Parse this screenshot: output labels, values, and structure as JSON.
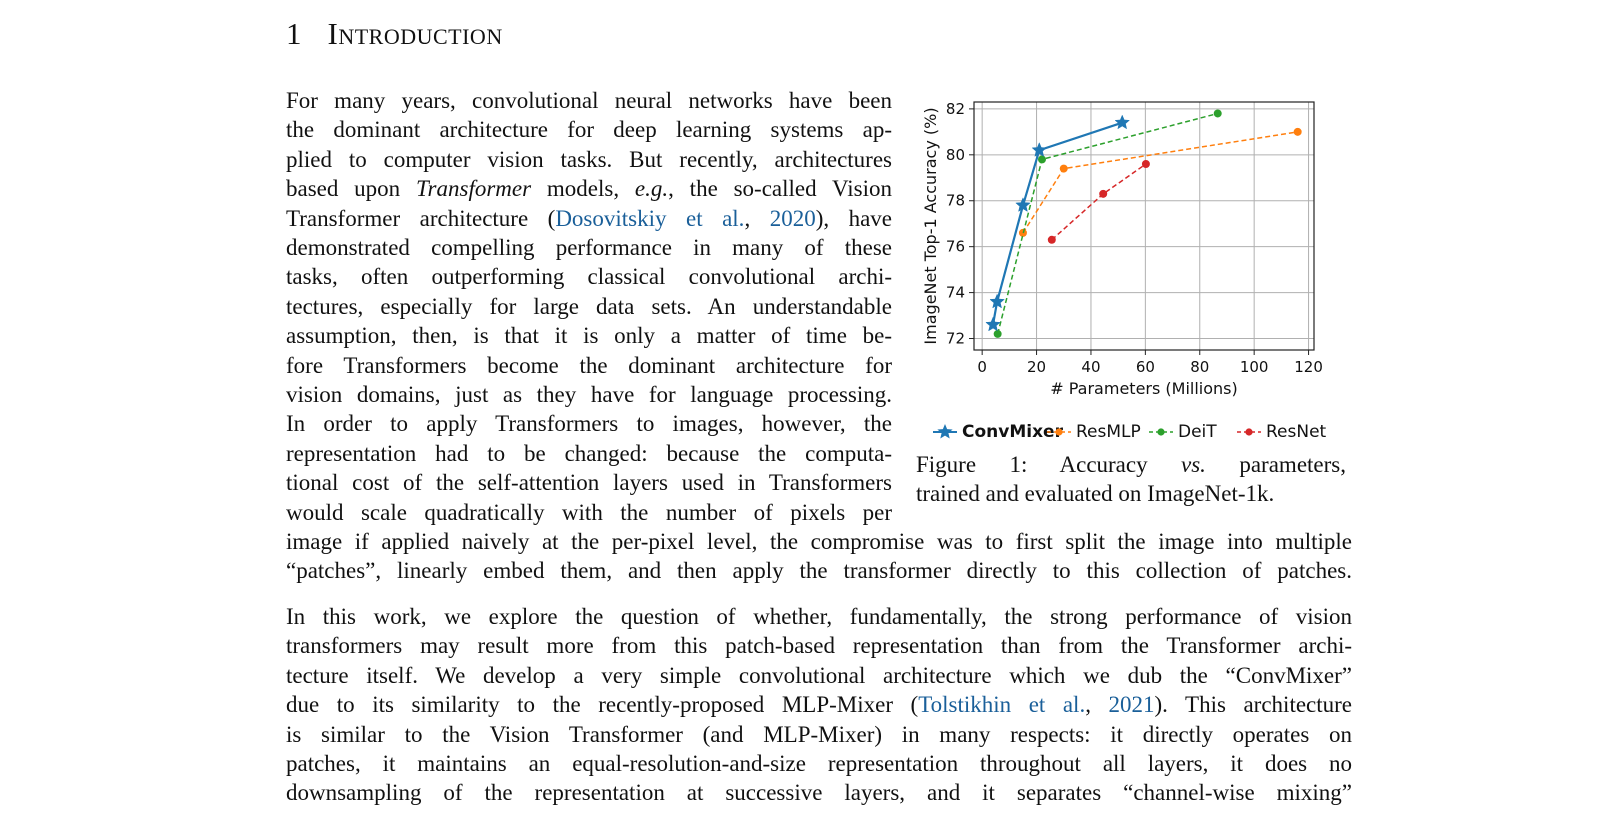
{
  "section": {
    "number": "1",
    "title": "Introduction"
  },
  "para1": {
    "lines_narrow": [
      "For many years, convolutional neural networks have been",
      "the dominant architecture for deep learning systems ap-",
      "plied to computer vision tasks. But recently, architectures",
      "based upon |Transformer| models, |e.g.|, the so-called Vision",
      "Transformer architecture (|Dosovitskiy et al.|, |2020|), have",
      "demonstrated compelling performance in many of these",
      "tasks, often outperforming classical convolutional archi-",
      "tectures, especially for large data sets. An understandable",
      "assumption, then, is that it is only a matter of time be-",
      "fore Transformers become the dominant architecture for",
      "vision domains, just as they have for language processing.",
      "In order to apply Transformers to images, however, the",
      "representation had to be changed: because the computa-",
      "tional cost of the self-attention layers used in Transformers",
      "would scale quadratically with the number of pixels per"
    ],
    "lines_wide": [
      "image if applied naively at the per-pixel level, the compromise was to first split the image into multiple",
      "“patches”, linearly embed them, and then apply the transformer directly to this collection of patches."
    ],
    "line4_a": "based upon ",
    "line4_b": "Transformer",
    "line4_c": " models, ",
    "line4_d": "e.g.",
    "line4_e": ", the so-called Vision",
    "line5_a": "Transformer architecture (",
    "line5_b": "Dosovitskiy et al.",
    "line5_c": ", ",
    "line5_d": "2020",
    "line5_e": "), have"
  },
  "para2": {
    "lines": [
      "In this work, we explore the question of whether, fundamentally, the strong performance of vision",
      "transformers may result more from this patch-based representation than from the Transformer archi-",
      "tecture itself. We develop a very simple convolutional architecture which we dub the “ConvMixer”",
      "due to its similarity to the recently-proposed MLP-Mixer (",
      "Tolstikhin et al.",
      ", ",
      "2021",
      "). This architecture",
      "is similar to the Vision Transformer (and MLP-Mixer) in many respects: it directly operates on",
      "patches, it maintains an equal-resolution-and-size representation throughout all layers, it does no",
      "downsampling of the representation at successive layers, and it separates “channel-wise mixing”"
    ]
  },
  "figure": {
    "caption_a": "Figure 1: Accuracy ",
    "caption_b": "vs.",
    "caption_c": " parameters,",
    "caption_line2": "trained and evaluated on ImageNet-1k."
  },
  "chart_data": {
    "type": "line",
    "xlabel": "# Parameters (Millions)",
    "ylabel": "ImageNet Top-1 Accuracy (%)",
    "xlim": [
      -3,
      122
    ],
    "ylim": [
      71.5,
      82.3
    ],
    "xticks": [
      0,
      20,
      40,
      60,
      80,
      100,
      120
    ],
    "yticks": [
      72,
      74,
      76,
      78,
      80,
      82
    ],
    "grid": true,
    "legend_position": "bottom",
    "series": [
      {
        "name": "ConvMixer",
        "color": "#1f77b4",
        "marker": "star",
        "style": "solid",
        "points": [
          [
            4,
            72.6
          ],
          [
            5.5,
            73.6
          ],
          [
            15,
            77.8
          ],
          [
            21,
            80.2
          ],
          [
            51.5,
            81.4
          ]
        ]
      },
      {
        "name": "ResMLP",
        "color": "#ff7f0e",
        "marker": "circle",
        "style": "dashed",
        "points": [
          [
            15,
            76.6
          ],
          [
            30,
            79.4
          ],
          [
            116,
            81.0
          ]
        ]
      },
      {
        "name": "DeiT",
        "color": "#2ca02c",
        "marker": "circle",
        "style": "dashed",
        "points": [
          [
            5.7,
            72.2
          ],
          [
            22,
            79.8
          ],
          [
            86.6,
            81.8
          ]
        ]
      },
      {
        "name": "ResNet",
        "color": "#d62728",
        "marker": "circle",
        "style": "dashed",
        "points": [
          [
            25.6,
            76.3
          ],
          [
            44.5,
            78.3
          ],
          [
            60.2,
            79.6
          ]
        ]
      }
    ]
  }
}
